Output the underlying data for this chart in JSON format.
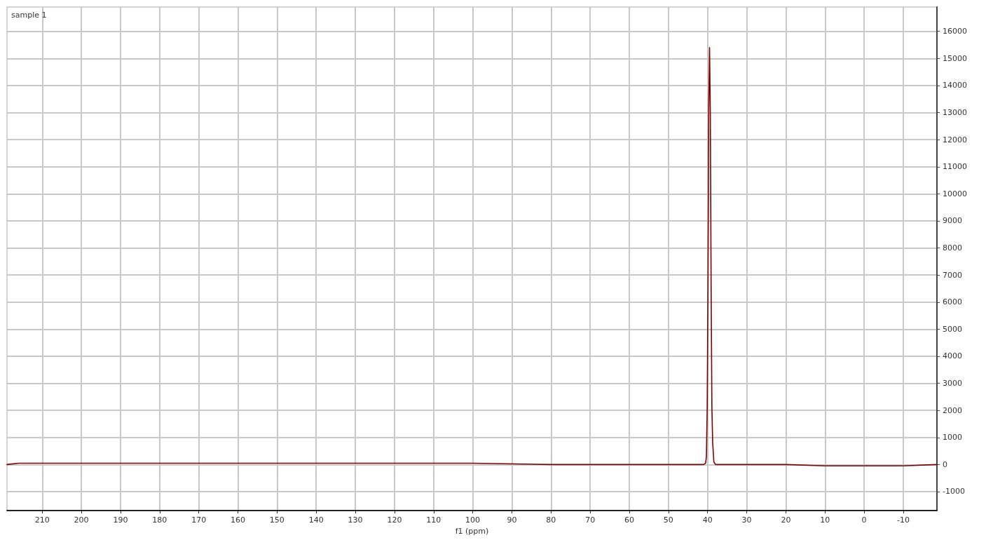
{
  "chart_data": {
    "type": "line",
    "title": "sample 1",
    "xlabel": "f1 (ppm)",
    "x": [
      219,
      216,
      200,
      180,
      150,
      120,
      100,
      80,
      60,
      45,
      41,
      40.5,
      40.3,
      40.1,
      39.9,
      39.7,
      39.5,
      39.3,
      39.1,
      38.9,
      38.7,
      38.4,
      38,
      30,
      20,
      10,
      0,
      -10,
      -18.6
    ],
    "series": [
      {
        "color": "#800000",
        "values": [
          0,
          50,
          50,
          50,
          50,
          50,
          50,
          0,
          0,
          0,
          0,
          50,
          300,
          2100,
          6500,
          13200,
          15400,
          13000,
          6600,
          2100,
          800,
          100,
          0,
          0,
          0,
          -50,
          -50,
          -50,
          0
        ]
      }
    ],
    "xlim": [
      219,
      -18.6
    ],
    "xticks": [
      210,
      200,
      190,
      180,
      170,
      160,
      150,
      140,
      130,
      120,
      110,
      100,
      90,
      80,
      70,
      60,
      50,
      40,
      30,
      20,
      10,
      0,
      -10
    ],
    "ylim": [
      -1700,
      16900
    ],
    "yticks": [
      -1000,
      0,
      1000,
      2000,
      3000,
      4000,
      5000,
      6000,
      7000,
      8000,
      9000,
      10000,
      11000,
      12000,
      13000,
      14000,
      15000,
      16000
    ],
    "grid": true,
    "marker": "none",
    "line_style": "solid"
  }
}
